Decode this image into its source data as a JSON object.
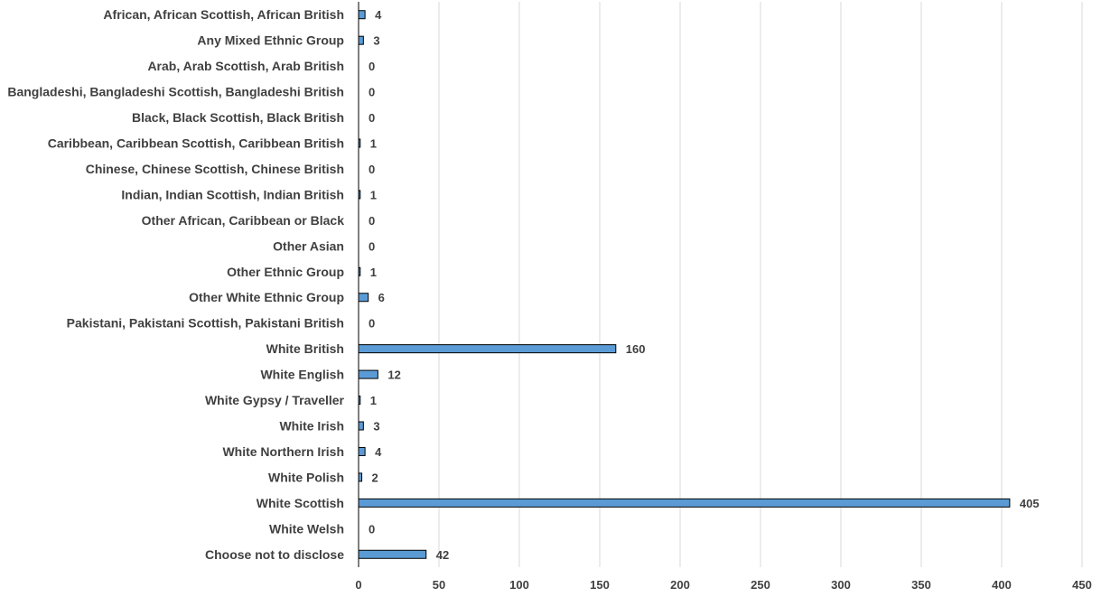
{
  "chart_data": {
    "type": "bar",
    "orientation": "horizontal",
    "title": "",
    "xlabel": "",
    "ylabel": "",
    "categories": [
      "African, African Scottish, African British",
      "Any Mixed Ethnic Group",
      "Arab, Arab Scottish, Arab British",
      "Bangladeshi, Bangladeshi Scottish, Bangladeshi British",
      "Black, Black Scottish, Black British",
      "Caribbean, Caribbean Scottish, Caribbean British",
      "Chinese, Chinese Scottish, Chinese British",
      "Indian, Indian Scottish, Indian British",
      "Other African, Caribbean or Black",
      "Other Asian",
      "Other Ethnic Group",
      "Other White Ethnic Group",
      "Pakistani, Pakistani Scottish, Pakistani British",
      "White British",
      "White English",
      "White Gypsy / Traveller",
      "White Irish",
      "White Northern Irish",
      "White Polish",
      "White Scottish",
      "White Welsh",
      "Choose not to disclose"
    ],
    "values": [
      4,
      3,
      0,
      0,
      0,
      1,
      0,
      1,
      0,
      0,
      1,
      6,
      0,
      160,
      12,
      1,
      3,
      4,
      2,
      405,
      0,
      42
    ],
    "xlim": [
      0,
      450
    ],
    "xticks": [
      0,
      50,
      100,
      150,
      200,
      250,
      300,
      350,
      400,
      450
    ],
    "grid": "vertical",
    "data_labels": true,
    "legend": "none",
    "colors": {
      "bar_fill": "#5b9bd5",
      "bar_stroke": "#000000",
      "grid": "#d9d9d9",
      "text": "#404040"
    }
  }
}
